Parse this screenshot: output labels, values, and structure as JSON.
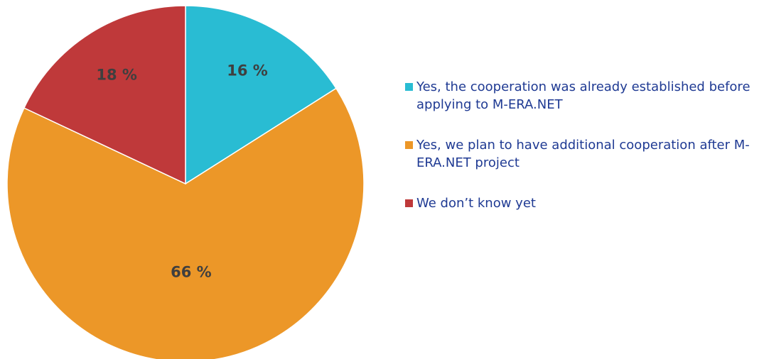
{
  "chart_data": {
    "type": "pie",
    "start_angle_deg": 0,
    "direction": "clockwise",
    "slices": [
      {
        "label": "Yes, the cooperation was already established before applying to M-ERA.NET",
        "value": 16,
        "display": "16 %",
        "color": "#29bcd3"
      },
      {
        "label": "Yes, we plan to have additional cooperation after M-ERA.NET project",
        "value": 66,
        "display": "66 %",
        "color": "#ec9728"
      },
      {
        "label": "We don’t know yet",
        "value": 18,
        "display": "18 %",
        "color": "#bf393a"
      }
    ],
    "legend_position": "right"
  }
}
